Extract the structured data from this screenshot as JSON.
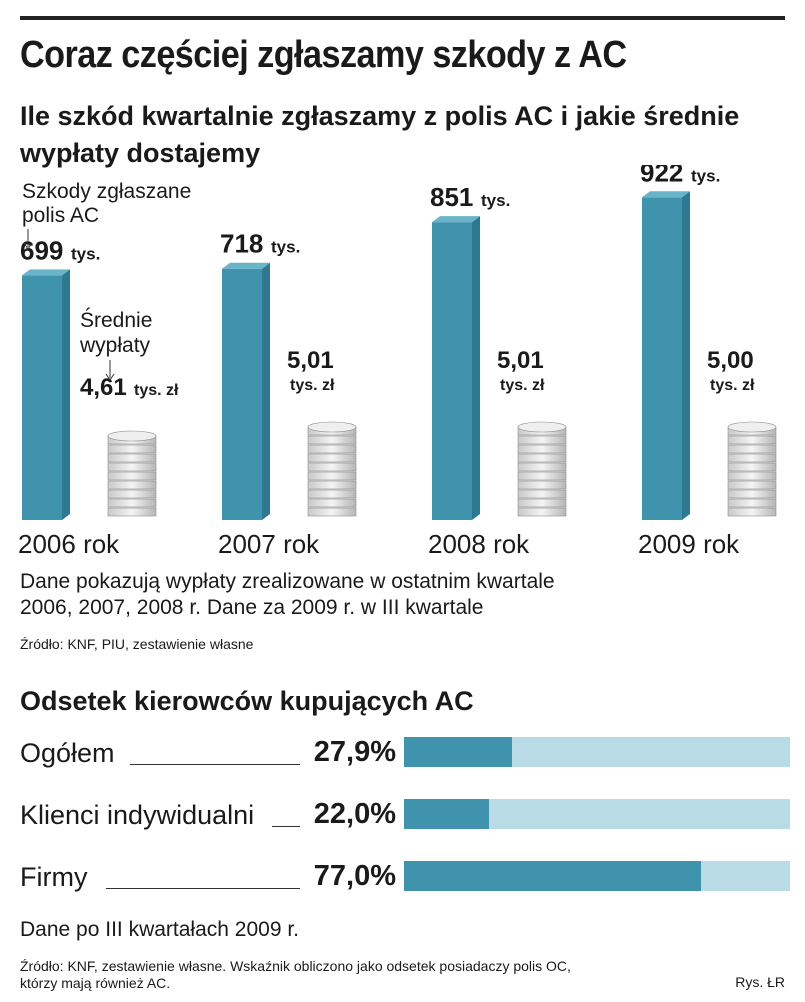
{
  "header": {
    "title": "Coraz częściej zgłaszamy szkody z AC",
    "subtitle": "Ile szkód kwartalnie zgłaszamy z polis AC i jakie średnie wypłaty dostajemy"
  },
  "chart_data": [
    {
      "type": "bar",
      "title": "Ile szkód kwartalnie zgłaszamy z polis AC i jakie średnie wypłaty dostajemy",
      "categories": [
        "2006 rok",
        "2007 rok",
        "2008 rok",
        "2009 rok"
      ],
      "series": [
        {
          "name": "Szkody zgłaszane polis AC",
          "unit": "tys.",
          "values": [
            699,
            718,
            851,
            922
          ],
          "labels": [
            "699",
            "718",
            "851",
            "922"
          ]
        },
        {
          "name": "Średnie wypłaty",
          "unit": "tys. zł",
          "values": [
            4.61,
            5.01,
            5.01,
            5.0
          ],
          "labels": [
            "4,61",
            "5,01",
            "5,01",
            "5,00"
          ]
        }
      ],
      "annotations": {
        "claims_label_line1": "Szkody zgłaszane",
        "claims_label_line2": "polis AC",
        "payout_label_line1": "Średnie",
        "payout_label_line2": "wypłaty"
      }
    },
    {
      "type": "bar",
      "orientation": "horizontal",
      "title": "Odsetek kierowców kupujących AC",
      "categories": [
        "Ogółem",
        "Klienci indywidualni",
        "Firmy"
      ],
      "values": [
        27.9,
        22.0,
        77.0
      ],
      "labels": [
        "27,9%",
        "22,0%",
        "77,0%"
      ],
      "xlim": [
        0,
        100
      ]
    }
  ],
  "notes": {
    "chart1_note_line1": "Dane pokazują wypłaty zrealizowane w ostatnim kwartale",
    "chart1_note_line2": "2006, 2007, 2008 r. Dane za 2009 r. w III kwartale",
    "chart1_source": "Źródło: KNF, PIU, zestawienie własne",
    "chart2_note": "Dane po III kwartałach 2009 r.",
    "chart2_source_line1": "Źródło: KNF, zestawienie własne. Wskaźnik obliczono jako odsetek posiadaczy polis OC,",
    "chart2_source_line2": "którzy mają również AC.",
    "credit": "Rys. ŁR"
  },
  "colors": {
    "bar_front": "#3f93ad",
    "bar_side": "#2e7892",
    "bar_top": "#6ab4ca",
    "bar_track": "#b9dbe5"
  }
}
